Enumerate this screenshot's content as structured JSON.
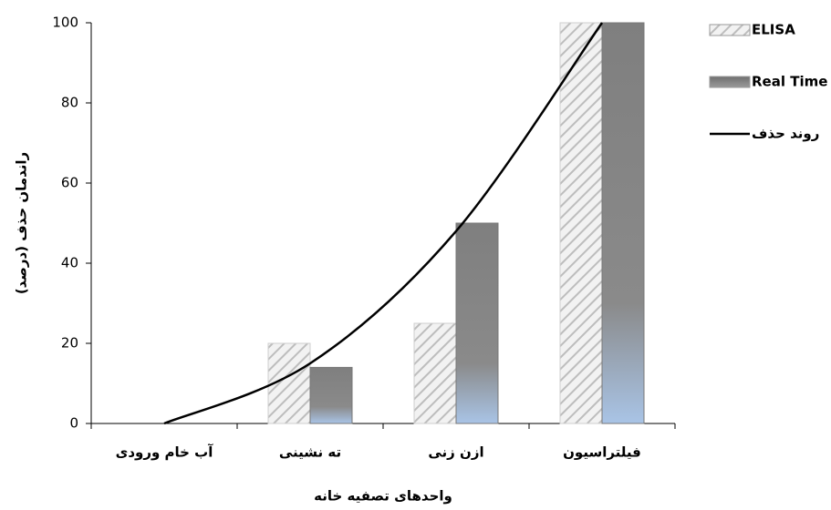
{
  "chart_data": {
    "type": "bar",
    "y_label": "راندمان حذف (درصد)",
    "x_label": "واحدهای تصفیه خانه",
    "categories": [
      "آب خام ورودی",
      "ته نشینی",
      "ازن زنی",
      "فیلتراسیون"
    ],
    "series": [
      {
        "name": "ELISA",
        "color": "#d9d9d9",
        "values": [
          0,
          20,
          25,
          100
        ]
      },
      {
        "name": "Real Time",
        "color": "#808080",
        "values": [
          0,
          14,
          50,
          100
        ]
      },
      {
        "name": "روند حذف",
        "type": "line",
        "color": "#000000",
        "values": [
          0,
          15,
          48,
          100
        ]
      }
    ],
    "ylim": [
      0,
      100
    ],
    "yticks": [
      0,
      20,
      40,
      60,
      80,
      100
    ],
    "legend": "right"
  }
}
